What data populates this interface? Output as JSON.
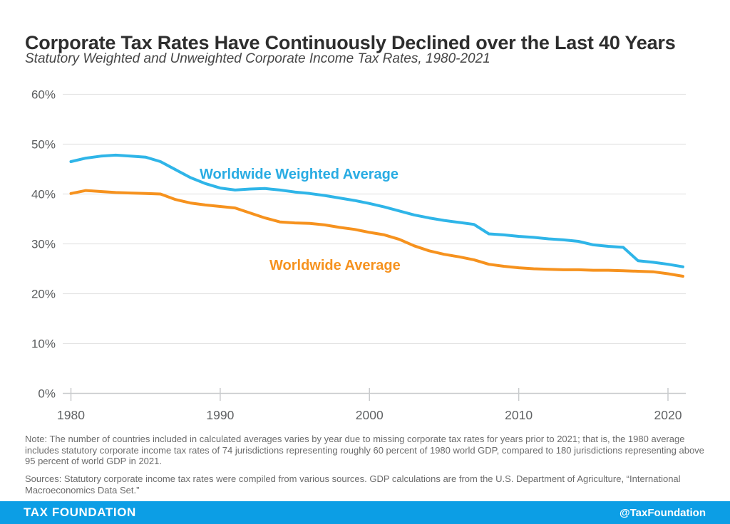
{
  "header": {
    "title": "Corporate Tax Rates Have Continuously Declined over the Last 40 Years",
    "subtitle": "Statutory Weighted and Unweighted Corporate Income Tax Rates, 1980-2021"
  },
  "chart_data": {
    "type": "line",
    "x": [
      1980,
      1981,
      1982,
      1983,
      1984,
      1985,
      1986,
      1987,
      1988,
      1989,
      1990,
      1991,
      1992,
      1993,
      1994,
      1995,
      1996,
      1997,
      1998,
      1999,
      2000,
      2001,
      2002,
      2003,
      2004,
      2005,
      2006,
      2007,
      2008,
      2009,
      2010,
      2011,
      2012,
      2013,
      2014,
      2015,
      2016,
      2017,
      2018,
      2019,
      2020,
      2021
    ],
    "series": [
      {
        "name": "Worldwide Weighted Average",
        "color": "#2fb5e8",
        "values": [
          46.5,
          47.2,
          47.6,
          47.8,
          47.6,
          47.4,
          46.5,
          44.9,
          43.3,
          42.1,
          41.2,
          40.8,
          41.0,
          41.1,
          40.8,
          40.4,
          40.1,
          39.7,
          39.2,
          38.7,
          38.1,
          37.4,
          36.6,
          35.8,
          35.2,
          34.7,
          34.3,
          33.9,
          32.0,
          31.8,
          31.5,
          31.3,
          31.0,
          30.8,
          30.5,
          29.8,
          29.5,
          29.3,
          26.6,
          26.3,
          25.9,
          25.4
        ]
      },
      {
        "name": "Worldwide Average",
        "color": "#f6921e",
        "values": [
          40.1,
          40.7,
          40.5,
          40.3,
          40.2,
          40.1,
          40.0,
          38.9,
          38.2,
          37.8,
          37.5,
          37.2,
          36.2,
          35.2,
          34.4,
          34.2,
          34.1,
          33.8,
          33.3,
          32.9,
          32.3,
          31.8,
          30.9,
          29.6,
          28.6,
          27.9,
          27.4,
          26.8,
          25.9,
          25.5,
          25.2,
          25.0,
          24.9,
          24.8,
          24.8,
          24.7,
          24.7,
          24.6,
          24.5,
          24.4,
          24.0,
          23.5
        ]
      }
    ],
    "title": "Corporate Tax Rates Have Continuously Declined over the Last 40 Years",
    "subtitle": "Statutory Weighted and Unweighted Corporate Income Tax Rates, 1980-2021",
    "xlabel": "",
    "ylabel": "",
    "ylim": [
      0,
      60
    ],
    "yticks": [
      "0%",
      "10%",
      "20%",
      "30%",
      "40%",
      "50%",
      "60%"
    ],
    "xticks": [
      1980,
      1990,
      2000,
      2010,
      2020
    ],
    "grid": "horizontal",
    "legend_position": "inline-labels"
  },
  "labels": {
    "weighted": "Worldwide Weighted Average",
    "average": "Worldwide Average"
  },
  "note": "Note: The number of countries included in calculated averages varies by year due to missing corporate tax rates for years prior to 2021; that is, the 1980 average includes statutory corporate income tax rates of 74 jurisdictions representing roughly 60 percent of 1980 world GDP, compared to 180 jurisdictions representing above 95 percent of world GDP in 2021.",
  "sources": "Sources: Statutory corporate income tax rates were compiled from various sources. GDP calculations are from the U.S. Department of Agriculture, “International Macroeconomics Data Set.”",
  "footer": {
    "brand": "TAX FOUNDATION",
    "handle": "@TaxFoundation"
  },
  "colors": {
    "weighted_line": "#2fb5e8",
    "weighted_label": "#29ace3",
    "average_line": "#f6921e",
    "footer_bar": "#0c9ee5",
    "grid": "#e4e4e4",
    "axis": "#c9cbcd",
    "axis_text": "#5a5c5e"
  }
}
